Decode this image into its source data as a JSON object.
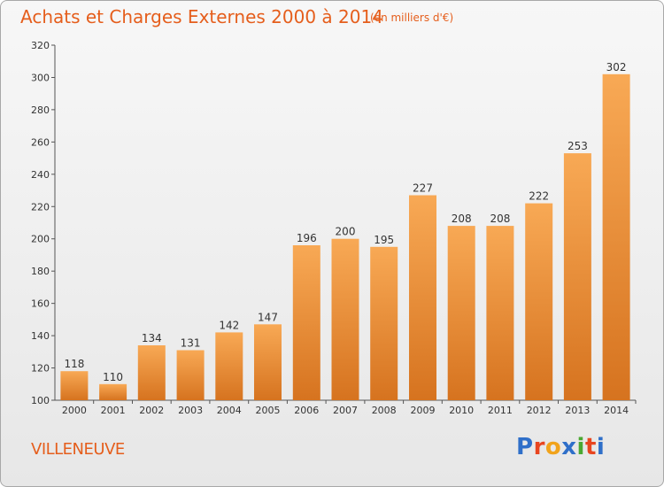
{
  "header": {
    "title": "Achats et Charges Externes 2000 à 2014",
    "subtitle": "(en milliers d'€)"
  },
  "footer": {
    "city": "VILLENEUVE",
    "logo_text": "Proxiti",
    "logo_colors": [
      "#2f6fc9",
      "#e8451f",
      "#f1a31b",
      "#2f6fc9",
      "#4aa832",
      "#e8451f",
      "#2f6fc9"
    ]
  },
  "colors": {
    "title": "#e55e1c",
    "bar_light": "#f7a54e",
    "bar_dark": "#d4731f"
  },
  "chart_data": {
    "type": "bar",
    "title": "Achats et Charges Externes 2000 à 2014",
    "xlabel": "",
    "ylabel": "",
    "categories": [
      "2000",
      "2001",
      "2002",
      "2003",
      "2004",
      "2005",
      "2006",
      "2007",
      "2008",
      "2009",
      "2010",
      "2011",
      "2012",
      "2013",
      "2014"
    ],
    "values": [
      118,
      110,
      134,
      131,
      142,
      147,
      196,
      200,
      195,
      227,
      208,
      208,
      222,
      253,
      302
    ],
    "ylim": [
      100,
      320
    ],
    "yticks": [
      100,
      120,
      140,
      160,
      180,
      200,
      220,
      240,
      260,
      280,
      300,
      320
    ],
    "grid": false,
    "data_labels": true
  }
}
